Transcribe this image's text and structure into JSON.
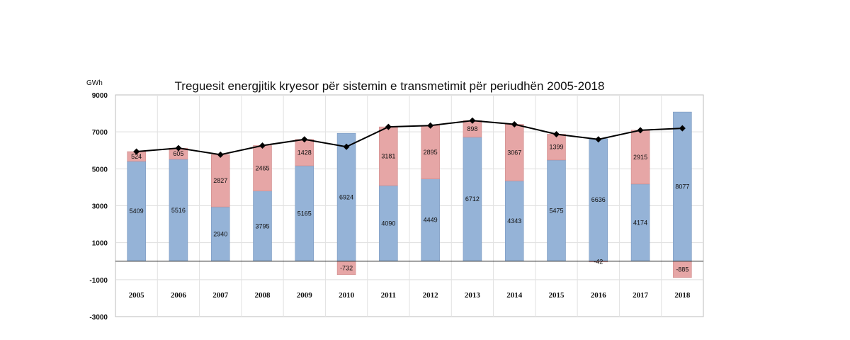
{
  "chart_data": {
    "type": "bar",
    "title": "Treguesit energjitik kryesor për sistemin e transmetimit për periudhën 2005-2018",
    "unit": "GWh",
    "ylim": [
      -3000,
      9000
    ],
    "yticks": [
      9000,
      7000,
      5000,
      3000,
      1000,
      -1000,
      -3000
    ],
    "grid": true,
    "categories": [
      "2005",
      "2006",
      "2007",
      "2008",
      "2009",
      "2010",
      "2011",
      "2012",
      "2013",
      "2014",
      "2015",
      "2016",
      "2017",
      "2018"
    ],
    "series": [
      {
        "name": "blue",
        "color": "#95b3d7",
        "values": [
          5409,
          5516,
          2940,
          3795,
          5165,
          6924,
          4090,
          4449,
          6712,
          4343,
          5475,
          6636,
          4174,
          8077
        ]
      },
      {
        "name": "red",
        "color": "#e6a6a6",
        "values": [
          524,
          605,
          2827,
          2465,
          1428,
          -732,
          3181,
          2895,
          898,
          3067,
          1399,
          -42,
          2915,
          -885
        ]
      },
      {
        "name": "line",
        "color": "#000000",
        "values": [
          5933,
          6121,
          5767,
          6260,
          6593,
          6192,
          7271,
          7344,
          7610,
          7410,
          6874,
          6594,
          7089,
          7192
        ]
      }
    ]
  }
}
